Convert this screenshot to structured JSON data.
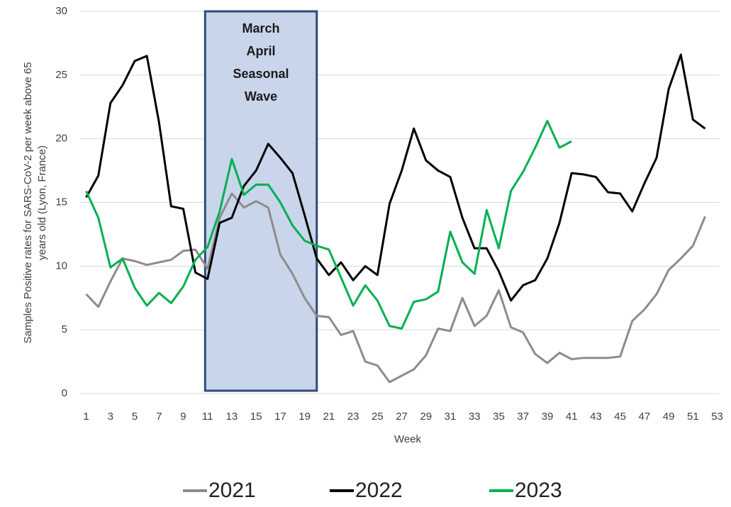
{
  "chart_data": {
    "type": "line",
    "ylabel": [
      "Samples Positive rates for SARS-CoV-2 per week above 65",
      "years old (Lyon, France)"
    ],
    "xlabel": "Week",
    "x": [
      1,
      2,
      3,
      4,
      5,
      6,
      7,
      8,
      9,
      10,
      11,
      12,
      13,
      14,
      15,
      16,
      17,
      18,
      19,
      20,
      21,
      22,
      23,
      24,
      25,
      26,
      27,
      28,
      29,
      30,
      31,
      32,
      33,
      34,
      35,
      36,
      37,
      38,
      39,
      40,
      41,
      42,
      43,
      44,
      45,
      46,
      47,
      48,
      49,
      50,
      51,
      52
    ],
    "xlim": [
      0.5,
      53.2
    ],
    "xticks": [
      1,
      3,
      5,
      7,
      9,
      11,
      13,
      15,
      17,
      19,
      21,
      23,
      25,
      27,
      29,
      31,
      33,
      35,
      37,
      39,
      41,
      43,
      45,
      47,
      49,
      51,
      53
    ],
    "ylim": [
      0,
      30
    ],
    "yticks": [
      0,
      5,
      10,
      15,
      20,
      25,
      30
    ],
    "grid": true,
    "legend": "bottom",
    "highlight": {
      "x": [
        10.8,
        20
      ],
      "label": [
        "March",
        "April",
        "Seasonal",
        "Wave"
      ],
      "color": "#c9d5ea",
      "edge": "#2f4a7a"
    },
    "series": [
      {
        "name": "2021",
        "color": "#8c8c8c",
        "values": [
          7.8,
          6.8,
          8.8,
          10.6,
          10.4,
          10.1,
          10.3,
          10.5,
          11.2,
          11.3,
          9.8,
          13.8,
          15.7,
          14.6,
          15.1,
          14.6,
          10.9,
          9.4,
          7.5,
          6.1,
          6.0,
          4.6,
          4.9,
          2.5,
          2.2,
          0.9,
          1.4,
          1.9,
          3.0,
          5.1,
          4.9,
          7.5,
          5.3,
          6.1,
          8.1,
          5.2,
          4.8,
          3.1,
          2.4,
          3.2,
          2.7,
          2.8,
          2.8,
          2.8,
          2.9,
          5.7,
          6.6,
          7.8,
          9.7,
          10.6,
          11.6,
          13.9
        ]
      },
      {
        "name": "2022",
        "color": "#000000",
        "values": [
          15.4,
          17.1,
          22.8,
          24.2,
          26.1,
          26.5,
          21.3,
          14.7,
          14.5,
          9.5,
          9.0,
          13.4,
          13.8,
          16.3,
          17.5,
          19.6,
          18.5,
          17.3,
          14.0,
          10.6,
          9.3,
          10.3,
          8.9,
          10.0,
          9.3,
          14.9,
          17.5,
          20.8,
          18.3,
          17.5,
          17.0,
          13.8,
          11.4,
          11.4,
          9.6,
          7.3,
          8.5,
          8.9,
          10.6,
          13.4,
          17.3,
          17.2,
          17.0,
          15.8,
          15.7,
          14.3,
          16.5,
          18.5,
          23.9,
          26.6,
          21.5,
          20.8
        ]
      },
      {
        "name": "2023",
        "color": "#00b050",
        "values": [
          15.9,
          13.8,
          9.9,
          10.6,
          8.3,
          6.9,
          7.9,
          7.1,
          8.4,
          10.5,
          11.5,
          14.3,
          18.4,
          15.6,
          16.4,
          16.4,
          15.0,
          13.2,
          12.0,
          11.6,
          11.3,
          9.1,
          6.9,
          8.5,
          7.3,
          5.3,
          5.1,
          7.2,
          7.4,
          8.0,
          12.7,
          10.3,
          9.4,
          14.4,
          11.4,
          15.9,
          17.4,
          19.3,
          21.4,
          19.3,
          19.8,
          null,
          null,
          null,
          null,
          null,
          null,
          null,
          null,
          null,
          null,
          null
        ]
      }
    ]
  }
}
